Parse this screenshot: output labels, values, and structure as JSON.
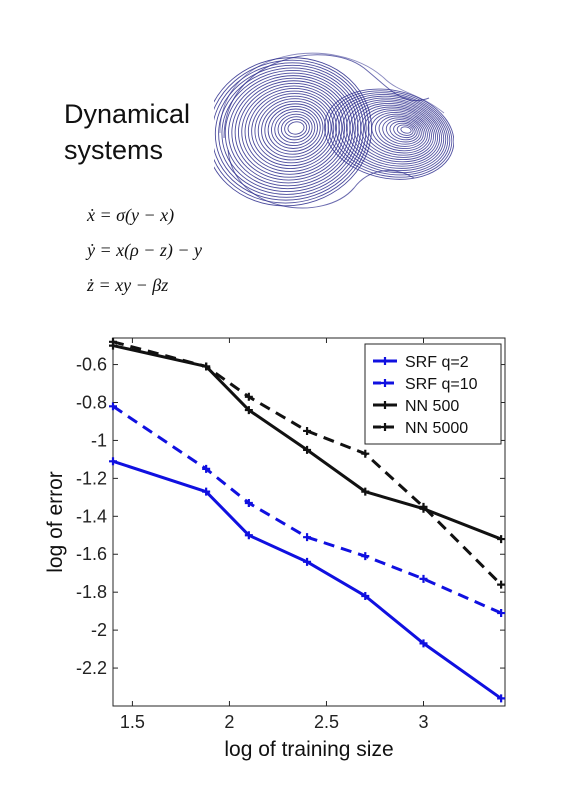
{
  "header": {
    "line1": "Dynamical",
    "line2": "systems"
  },
  "equations": {
    "eq1": "ẋ = σ(y − x)",
    "eq2": "ẏ = x(ρ − z) − y",
    "eq3": "ż = xy − βz"
  },
  "colors": {
    "blue": "#1010e0",
    "black": "#111111",
    "attractor": "#2b2b8c"
  },
  "chart_data": {
    "type": "line",
    "xlabel": "log of training size",
    "ylabel": "log of error",
    "xlim": [
      1.4,
      3.42
    ],
    "ylim": [
      -2.4,
      -0.46
    ],
    "xticks": [
      1.5,
      2,
      2.5,
      3
    ],
    "xtick_labels": [
      "1.5",
      "2",
      "2.5",
      "3"
    ],
    "yticks": [
      -0.6,
      -0.8,
      -1,
      -1.2,
      -1.4,
      -1.6,
      -1.8,
      -2,
      -2.2
    ],
    "ytick_labels": [
      "-0.6",
      "-0.8",
      "-1",
      "-1.2",
      "-1.4",
      "-1.6",
      "-1.8",
      "-2",
      "-2.2"
    ],
    "legend_position": "top-right",
    "series": [
      {
        "name": "SRF q=2",
        "color": "#1010e0",
        "dash": "solid",
        "x": [
          1.4,
          1.88,
          2.1,
          2.4,
          2.7,
          3.0,
          3.4
        ],
        "y": [
          -1.11,
          -1.27,
          -1.5,
          -1.64,
          -1.82,
          -2.07,
          -2.36
        ]
      },
      {
        "name": "SRF q=10",
        "color": "#1010e0",
        "dash": "dashed",
        "x": [
          1.4,
          1.88,
          2.1,
          2.4,
          2.7,
          3.0,
          3.4
        ],
        "y": [
          -0.82,
          -1.15,
          -1.33,
          -1.51,
          -1.61,
          -1.73,
          -1.91
        ]
      },
      {
        "name": "NN 500",
        "color": "#111111",
        "dash": "solid",
        "x": [
          1.4,
          1.88,
          2.1,
          2.4,
          2.7,
          3.0,
          3.4
        ],
        "y": [
          -0.5,
          -0.61,
          -0.84,
          -1.05,
          -1.27,
          -1.36,
          -1.52
        ]
      },
      {
        "name": "NN 5000",
        "color": "#111111",
        "dash": "dashed",
        "x": [
          1.4,
          1.88,
          2.1,
          2.4,
          2.7,
          3.0,
          3.4
        ],
        "y": [
          -0.48,
          -0.61,
          -0.77,
          -0.95,
          -1.07,
          -1.35,
          -1.76
        ]
      }
    ]
  }
}
